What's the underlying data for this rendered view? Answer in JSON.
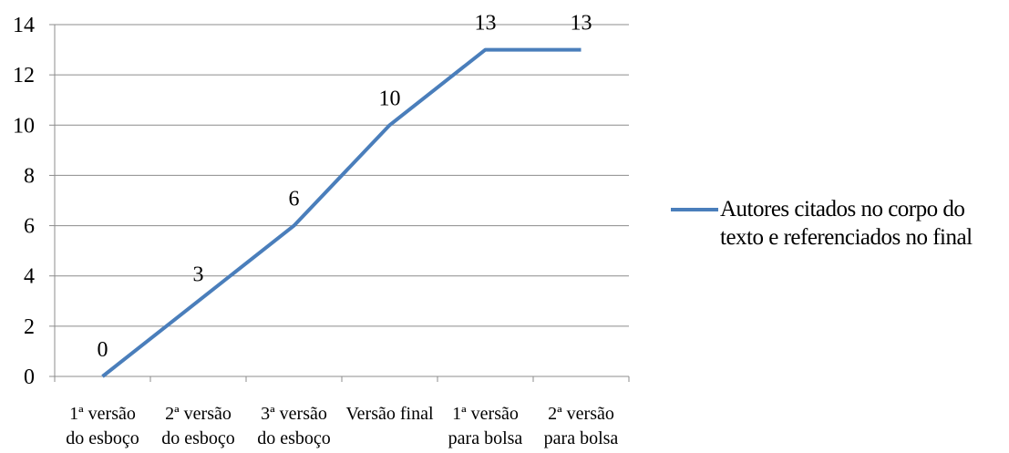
{
  "chart_data": {
    "type": "line",
    "categories": [
      "1ª versão do esboço",
      "2ª versão do esboço",
      "3ª versão do esboço",
      "Versão final",
      "1ª versão para bolsa",
      "2ª versão para bolsa"
    ],
    "series": [
      {
        "name": "Autores citados no corpo do texto e referenciados no final",
        "values": [
          0,
          3,
          6,
          10,
          13,
          13
        ],
        "color": "#4a7ebb"
      }
    ],
    "ylim": [
      0,
      14
    ],
    "yticks": [
      0,
      2,
      4,
      6,
      8,
      10,
      12,
      14
    ],
    "grid": true,
    "legend": "right",
    "title": "",
    "xlabel": "",
    "ylabel": ""
  }
}
